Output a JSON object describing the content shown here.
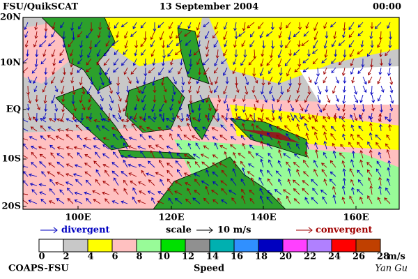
{
  "header": {
    "left": "FSU/QuikSCAT",
    "center": "13 September 2004",
    "right": "00:00"
  },
  "latitude_labels": [
    "20N",
    "10N",
    "EQ",
    "10S",
    "20S"
  ],
  "longitude_labels": [
    "100E",
    "120E",
    "140E",
    "160E"
  ],
  "legend": {
    "divergent": "divergent",
    "scale": "scale",
    "scale_value": "10 m/s",
    "convergent": "convergent"
  },
  "colorbar": {
    "ticks": [
      "0",
      "2",
      "4",
      "6",
      "8",
      "10",
      "12",
      "14",
      "16",
      "18",
      "20",
      "22",
      "24",
      "26",
      "28"
    ],
    "colors": [
      "#ffffff",
      "#c8c8c8",
      "#ffff00",
      "#ffc0c0",
      "#98fb98",
      "#00e000",
      "#909090",
      "#00b0b0",
      "#3090ff",
      "#0000c0",
      "#ff40ff",
      "#b080ff",
      "#ff0000",
      "#c04000",
      "#000000"
    ],
    "unit": "m/s",
    "title": "Speed"
  },
  "footer": {
    "left": "COAPS-FSU",
    "right": "Yan Gu"
  }
}
